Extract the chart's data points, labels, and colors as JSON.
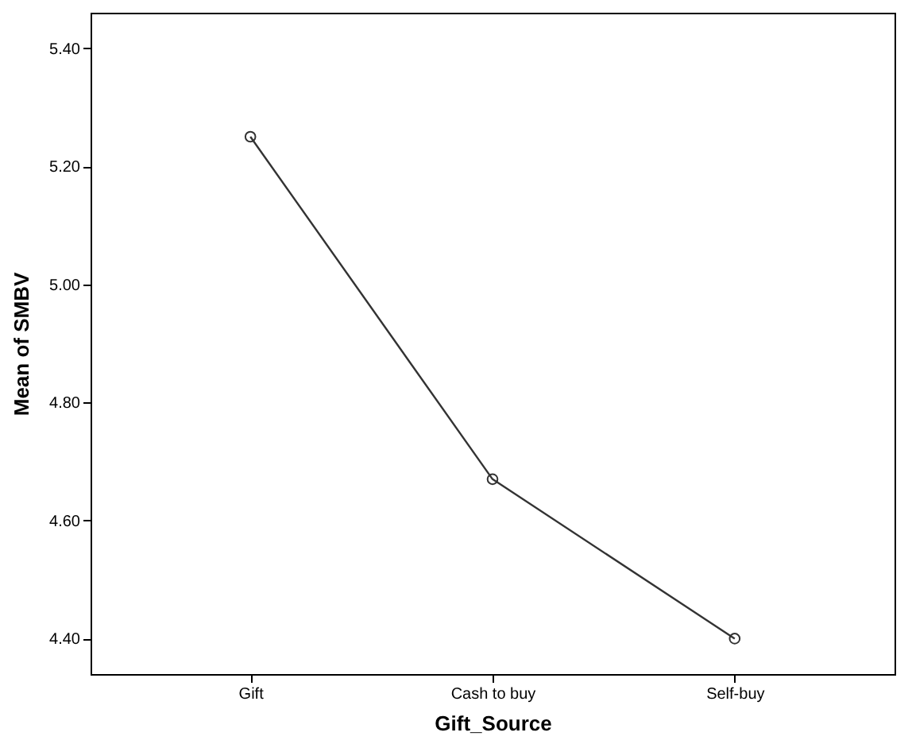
{
  "chart_data": {
    "type": "line",
    "xlabel": "Gift_Source",
    "ylabel": "Mean of SMBV",
    "categories": [
      "Gift",
      "Cash to buy",
      "Self-buy"
    ],
    "series": [
      {
        "color": "#333333",
        "values": [
          5.25,
          4.67,
          4.4
        ]
      }
    ],
    "ylim": [
      4.34,
      5.46
    ],
    "yticks": [
      {
        "value": 4.4,
        "label": "4.40"
      },
      {
        "value": 4.6,
        "label": "4.60"
      },
      {
        "value": 4.8,
        "label": "4.80"
      },
      {
        "value": 5.0,
        "label": "5.00"
      },
      {
        "value": 5.2,
        "label": "5.20"
      },
      {
        "value": 5.4,
        "label": "5.40"
      }
    ],
    "marker": "circle",
    "line_style": "solid"
  }
}
